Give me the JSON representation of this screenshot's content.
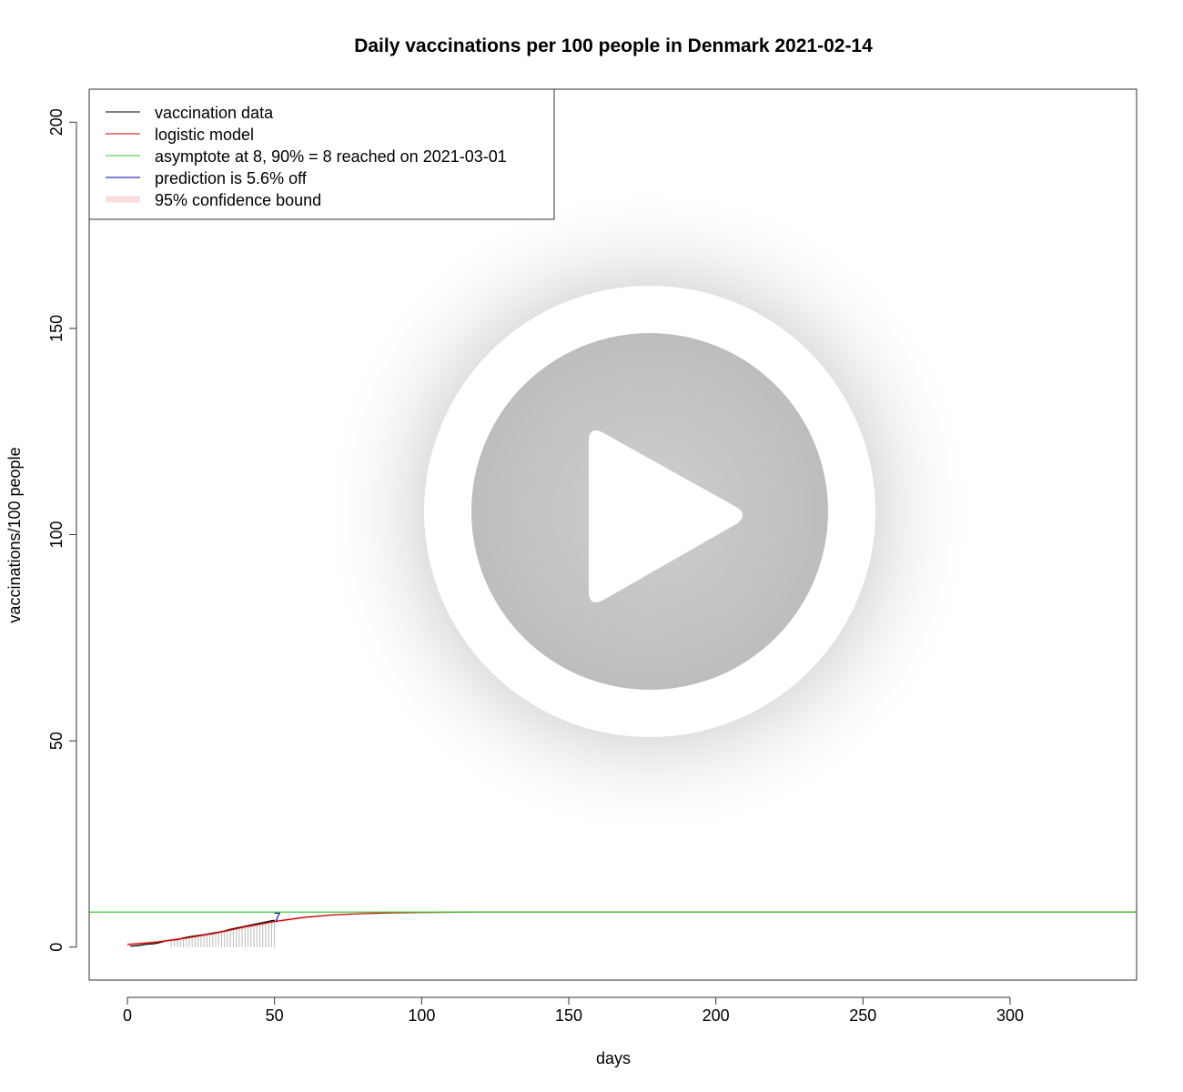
{
  "chart_data": {
    "type": "line",
    "title": "Daily vaccinations per 100 people in Denmark 2021-02-14",
    "xlabel": "days",
    "ylabel": "vaccinations/100 people",
    "xlim": [
      -13,
      343
    ],
    "ylim": [
      -8,
      208
    ],
    "x_ticks": [
      0,
      50,
      100,
      150,
      200,
      250,
      300
    ],
    "y_ticks": [
      0,
      50,
      100,
      150,
      200
    ],
    "grid": false,
    "legend_position": "top-left",
    "legend": [
      {
        "label": "vaccination data",
        "color": "#000000"
      },
      {
        "label": "logistic model",
        "color": "#cc0000"
      },
      {
        "label": "asymptote at 8, 90% = 8 reached on 2021-03-01",
        "color": "#33cc33"
      },
      {
        "label": "prediction is 5.6% off",
        "color": "#000099"
      },
      {
        "label": "95% confidence bound",
        "color": "#fadcdc"
      }
    ],
    "annotation": {
      "text": "7",
      "x": 50,
      "y": 6.7,
      "color": "#000099"
    },
    "series": [
      {
        "name": "vaccination data",
        "color": "#000000",
        "x": [
          1,
          3,
          5,
          7,
          9,
          11,
          13,
          15,
          17,
          19,
          21,
          23,
          25,
          27,
          29,
          31,
          33,
          35,
          37,
          39,
          41,
          43,
          45,
          47,
          49,
          50
        ],
        "y": [
          0.2,
          0.3,
          0.5,
          0.7,
          0.8,
          1.1,
          1.5,
          1.7,
          1.8,
          2.2,
          2.5,
          2.7,
          2.9,
          3.1,
          3.4,
          3.6,
          3.9,
          4.3,
          4.6,
          4.9,
          5.2,
          5.5,
          5.8,
          6.1,
          6.4,
          6.5
        ]
      },
      {
        "name": "logistic model",
        "color": "#cc0000",
        "x": [
          0,
          10,
          20,
          30,
          40,
          50,
          60,
          70,
          80,
          90,
          100,
          120,
          150,
          200,
          250,
          300,
          343
        ],
        "y": [
          0.6,
          1.2,
          2.2,
          3.4,
          4.9,
          6.2,
          7.2,
          7.8,
          8.1,
          8.3,
          8.4,
          8.5,
          8.5,
          8.5,
          8.5,
          8.5,
          8.5
        ]
      },
      {
        "name": "asymptote at 8, 90% = 8 reached on 2021-03-01",
        "color": "#33cc33",
        "x": [
          -13,
          343
        ],
        "y": [
          8.5,
          8.5
        ]
      },
      {
        "name": "95% confidence bound",
        "color": "#fadcdc",
        "x": [
          0,
          10,
          20,
          30,
          40,
          50,
          60,
          70,
          80,
          90,
          100
        ],
        "lower": [
          0.2,
          0.8,
          1.8,
          3.0,
          4.4,
          5.8,
          6.9,
          7.6,
          8.0,
          8.2,
          8.3
        ],
        "upper": [
          1.0,
          1.6,
          2.6,
          3.8,
          5.4,
          6.6,
          7.5,
          8.0,
          8.2,
          8.4,
          8.5
        ]
      }
    ],
    "daily_bars": {
      "color": "#bbbbbb",
      "x": [
        15,
        16,
        17,
        18,
        19,
        20,
        21,
        22,
        23,
        24,
        25,
        26,
        27,
        28,
        29,
        30,
        31,
        32,
        33,
        34,
        35,
        36,
        37,
        38,
        39,
        40,
        41,
        42,
        43,
        44,
        45,
        46,
        47,
        48,
        49,
        50
      ],
      "y": [
        1.7,
        1.8,
        1.8,
        2.0,
        2.2,
        2.4,
        2.5,
        2.6,
        2.7,
        2.8,
        2.9,
        3.0,
        3.1,
        3.3,
        3.4,
        3.5,
        3.6,
        3.8,
        3.9,
        4.1,
        4.3,
        4.4,
        4.6,
        4.7,
        4.9,
        5.0,
        5.2,
        5.4,
        5.5,
        5.7,
        5.8,
        6.0,
        6.1,
        6.2,
        6.4,
        6.5
      ]
    }
  },
  "overlay": {
    "icon": "play-icon"
  }
}
